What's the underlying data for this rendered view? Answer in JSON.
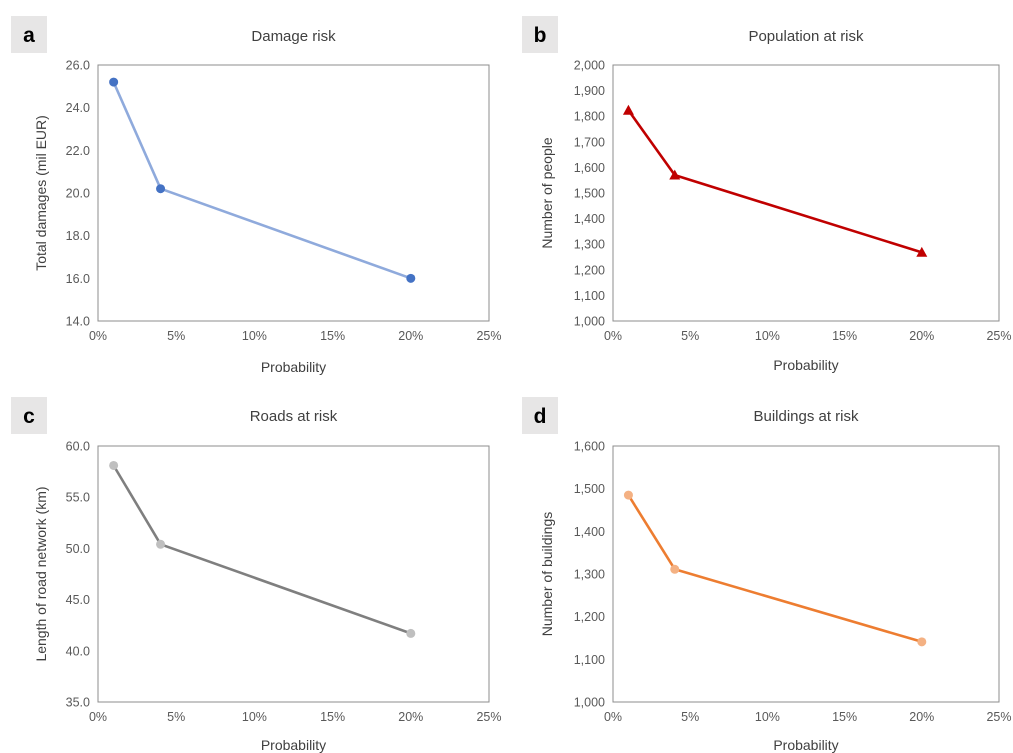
{
  "chart_data": [
    {
      "panel": "a",
      "type": "line",
      "title": "Damage risk",
      "xlabel": "Probability",
      "ylabel": "Total damages (mil EUR)",
      "x": [
        0.01,
        0.04,
        0.2
      ],
      "values": [
        25.2,
        20.2,
        16.0
      ],
      "xlim": [
        0,
        0.25
      ],
      "ylim": [
        14,
        26
      ],
      "xticks": [
        0,
        0.05,
        0.1,
        0.15,
        0.2,
        0.25
      ],
      "xtick_labels": [
        "0%",
        "5%",
        "10%",
        "15%",
        "20%",
        "25%"
      ],
      "yticks": [
        14,
        16,
        18,
        20,
        22,
        24,
        26
      ],
      "ytick_labels": [
        "14.0",
        "16.0",
        "18.0",
        "20.0",
        "22.0",
        "24.0",
        "26.0"
      ],
      "marker": "circle",
      "line_color": "#8FAADC",
      "marker_color": "#4472C4"
    },
    {
      "panel": "b",
      "type": "line",
      "title": "Population at risk",
      "xlabel": "Probability",
      "ylabel": "Number of people",
      "x": [
        0.01,
        0.04,
        0.2
      ],
      "values": [
        1823,
        1570,
        1268
      ],
      "xlim": [
        0,
        0.25
      ],
      "ylim": [
        1000,
        2000
      ],
      "xticks": [
        0,
        0.05,
        0.1,
        0.15,
        0.2,
        0.25
      ],
      "xtick_labels": [
        "0%",
        "5%",
        "10%",
        "15%",
        "20%",
        "25%"
      ],
      "yticks": [
        1000,
        1100,
        1200,
        1300,
        1400,
        1500,
        1600,
        1700,
        1800,
        1900,
        2000
      ],
      "ytick_labels": [
        "1,000",
        "1,100",
        "1,200",
        "1,300",
        "1,400",
        "1,500",
        "1,600",
        "1,700",
        "1,800",
        "1,900",
        "2,000"
      ],
      "marker": "triangle",
      "line_color": "#C00000",
      "marker_color": "#C00000"
    },
    {
      "panel": "c",
      "type": "line",
      "title": "Roads at risk",
      "xlabel": "Probability",
      "ylabel": "Length of road network (km)",
      "x": [
        0.01,
        0.04,
        0.2
      ],
      "values": [
        58.1,
        50.4,
        41.7
      ],
      "xlim": [
        0,
        0.25
      ],
      "ylim": [
        35,
        60
      ],
      "xticks": [
        0,
        0.05,
        0.1,
        0.15,
        0.2,
        0.25
      ],
      "xtick_labels": [
        "0%",
        "5%",
        "10%",
        "15%",
        "20%",
        "25%"
      ],
      "yticks": [
        35,
        40,
        45,
        50,
        55,
        60
      ],
      "ytick_labels": [
        "35.0",
        "40.0",
        "45.0",
        "50.0",
        "55.0",
        "60.0"
      ],
      "marker": "circle",
      "line_color": "#7F7F7F",
      "marker_color": "#BFBFBF"
    },
    {
      "panel": "d",
      "type": "line",
      "title": "Buildings at risk",
      "xlabel": "Probability",
      "ylabel": "Number of buildings",
      "x": [
        0.01,
        0.04,
        0.2
      ],
      "values": [
        1485,
        1311,
        1141
      ],
      "xlim": [
        0,
        0.25
      ],
      "ylim": [
        1000,
        1600
      ],
      "xticks": [
        0,
        0.05,
        0.1,
        0.15,
        0.2,
        0.25
      ],
      "xtick_labels": [
        "0%",
        "5%",
        "10%",
        "15%",
        "20%",
        "25%"
      ],
      "yticks": [
        1000,
        1100,
        1200,
        1300,
        1400,
        1500,
        1600
      ],
      "ytick_labels": [
        "1,000",
        "1,100",
        "1,200",
        "1,300",
        "1,400",
        "1,500",
        "1,600"
      ],
      "marker": "circle",
      "line_color": "#ED7D31",
      "marker_color": "#F4B183"
    }
  ]
}
